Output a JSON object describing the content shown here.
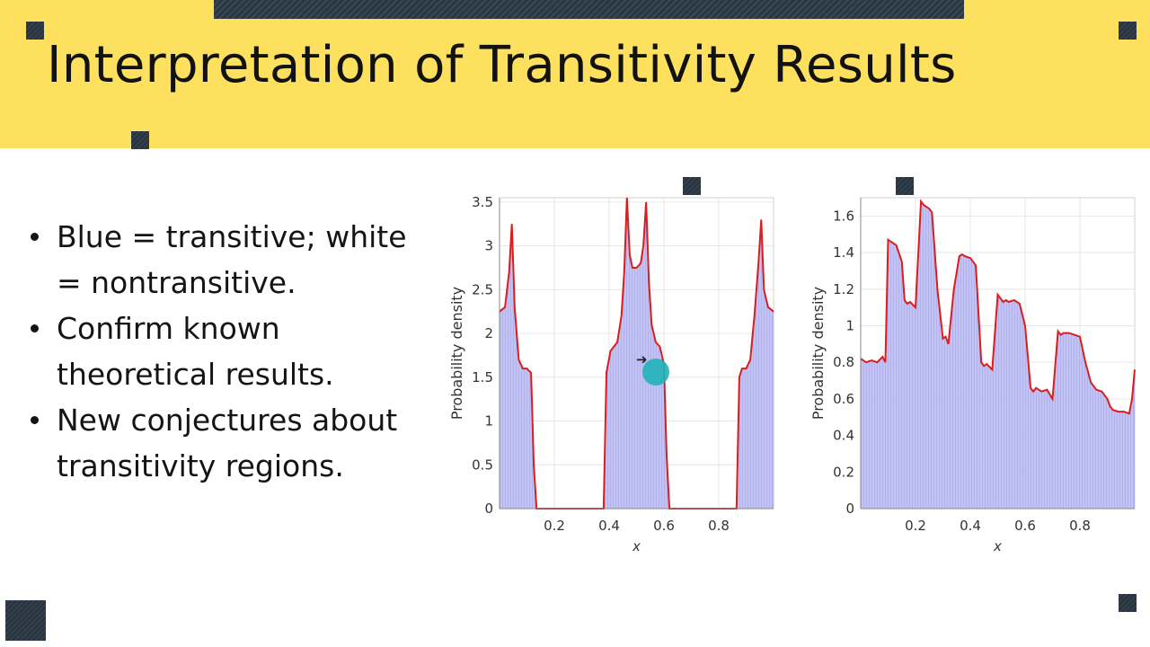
{
  "slide": {
    "title": "Interpretation of Transitivity Results",
    "bullets": [
      "Blue = transitive; white = nontransitive.",
      "Confirm known theoretical results.",
      "New conjectures about transitivity regions."
    ]
  },
  "colors": {
    "header_bg": "#fde05e",
    "bar_fill": "#aaaaee",
    "outline": "#d81e1e",
    "decor": "#2a3743",
    "cursor_dot": "#20b2b8"
  },
  "icons": {
    "cursor": "arrow-cursor-icon",
    "click_marker": "teal-dot"
  },
  "chart_data": [
    {
      "type": "area",
      "xlabel": "x",
      "ylabel": "Probability density",
      "xlim": [
        0,
        1
      ],
      "ylim": [
        0,
        3.55
      ],
      "xticks": [
        "0.2",
        "0.4",
        "0.6",
        "0.8"
      ],
      "yticks": [
        "0",
        "0.5",
        "1",
        "1.5",
        "2",
        "2.5",
        "3",
        "3.5"
      ],
      "grid": true,
      "x": [
        0.0,
        0.02,
        0.035,
        0.045,
        0.055,
        0.07,
        0.085,
        0.1,
        0.115,
        0.125,
        0.135,
        0.2,
        0.3,
        0.38,
        0.39,
        0.405,
        0.43,
        0.445,
        0.455,
        0.465,
        0.475,
        0.485,
        0.5,
        0.515,
        0.525,
        0.535,
        0.545,
        0.555,
        0.57,
        0.585,
        0.6,
        0.61,
        0.62,
        0.7,
        0.8,
        0.865,
        0.875,
        0.885,
        0.9,
        0.915,
        0.93,
        0.945,
        0.955,
        0.965,
        0.98,
        1.0
      ],
      "y": [
        2.25,
        2.3,
        2.7,
        3.25,
        2.3,
        1.7,
        1.6,
        1.6,
        1.55,
        0.5,
        0.0,
        0.0,
        0.0,
        0.0,
        1.55,
        1.8,
        1.9,
        2.2,
        2.7,
        3.55,
        2.9,
        2.75,
        2.75,
        2.8,
        3.0,
        3.5,
        2.6,
        2.1,
        1.9,
        1.85,
        1.65,
        0.6,
        0.0,
        0.0,
        0.0,
        0.0,
        1.5,
        1.6,
        1.6,
        1.7,
        2.2,
        2.8,
        3.3,
        2.5,
        2.3,
        2.25
      ]
    },
    {
      "type": "area",
      "xlabel": "x",
      "ylabel": "Probability density",
      "xlim": [
        0,
        1
      ],
      "ylim": [
        0,
        1.7
      ],
      "xticks": [
        "0.2",
        "0.4",
        "0.6",
        "0.8"
      ],
      "yticks": [
        "0",
        "0.2",
        "0.4",
        "0.6",
        "0.8",
        "1",
        "1.2",
        "1.4",
        "1.6"
      ],
      "grid": true,
      "x": [
        0.0,
        0.02,
        0.04,
        0.06,
        0.08,
        0.09,
        0.1,
        0.11,
        0.13,
        0.15,
        0.16,
        0.17,
        0.18,
        0.2,
        0.22,
        0.23,
        0.24,
        0.25,
        0.26,
        0.28,
        0.3,
        0.31,
        0.32,
        0.34,
        0.36,
        0.37,
        0.38,
        0.4,
        0.42,
        0.44,
        0.45,
        0.46,
        0.48,
        0.5,
        0.52,
        0.53,
        0.54,
        0.56,
        0.58,
        0.6,
        0.62,
        0.63,
        0.64,
        0.66,
        0.68,
        0.7,
        0.72,
        0.73,
        0.74,
        0.76,
        0.78,
        0.8,
        0.82,
        0.84,
        0.86,
        0.88,
        0.9,
        0.91,
        0.92,
        0.94,
        0.96,
        0.98,
        0.99,
        1.0
      ],
      "y": [
        0.82,
        0.8,
        0.81,
        0.8,
        0.83,
        0.8,
        1.47,
        1.46,
        1.44,
        1.35,
        1.14,
        1.12,
        1.13,
        1.1,
        1.68,
        1.66,
        1.65,
        1.64,
        1.62,
        1.2,
        0.93,
        0.94,
        0.9,
        1.2,
        1.38,
        1.39,
        1.38,
        1.37,
        1.33,
        0.8,
        0.78,
        0.79,
        0.76,
        1.17,
        1.13,
        1.14,
        1.13,
        1.14,
        1.12,
        1.0,
        0.66,
        0.64,
        0.66,
        0.64,
        0.65,
        0.6,
        0.97,
        0.95,
        0.96,
        0.96,
        0.95,
        0.94,
        0.8,
        0.69,
        0.65,
        0.64,
        0.6,
        0.56,
        0.54,
        0.53,
        0.53,
        0.52,
        0.6,
        0.76
      ]
    }
  ]
}
